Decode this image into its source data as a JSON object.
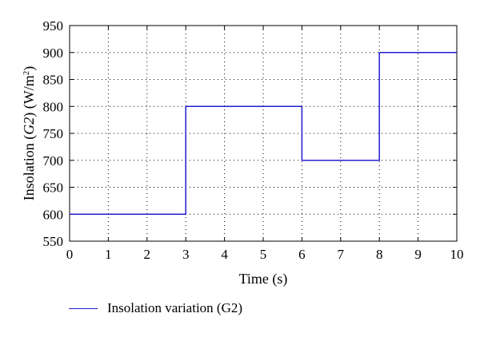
{
  "chart_data": {
    "type": "line",
    "title": "",
    "xlabel": "Time (s)",
    "ylabel_main": "Insolation (",
    "ylabel_italic": "G2",
    "ylabel_unit": ") (W/m",
    "ylabel_sup": "2",
    "ylabel_close": ")",
    "xlim": [
      0,
      10
    ],
    "ylim": [
      550,
      950
    ],
    "x_ticks": [
      "0",
      "1",
      "2",
      "3",
      "4",
      "5",
      "6",
      "7",
      "8",
      "9",
      "10"
    ],
    "y_ticks": [
      "550",
      "600",
      "650",
      "700",
      "750",
      "800",
      "850",
      "900",
      "950"
    ],
    "grid": true,
    "legend_position": "bottom-left",
    "series": [
      {
        "name": "Insolation variation (G2)",
        "color": "#1f1fd0",
        "x": [
          0,
          3,
          3,
          6,
          6,
          8,
          8,
          10
        ],
        "y": [
          600,
          600,
          800,
          800,
          700,
          700,
          900,
          900
        ]
      }
    ]
  }
}
